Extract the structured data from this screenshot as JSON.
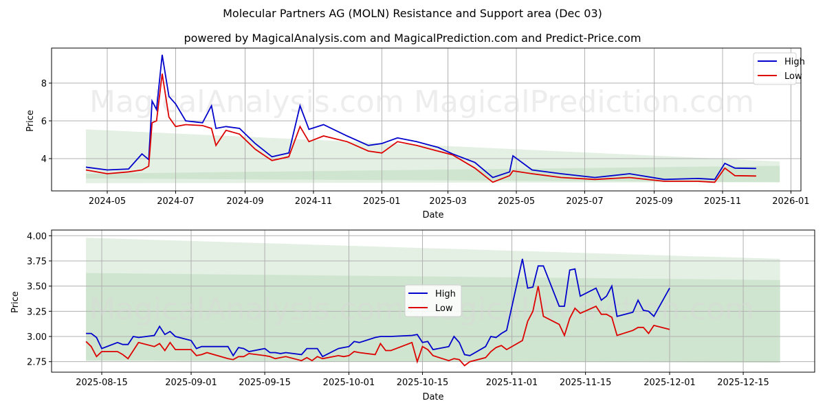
{
  "header": {
    "title": "Molecular Partners AG (MOLN) Resistance and Support area (Dec 03)",
    "subtitle": "powered by MagicalAnalysis.com and MagicalPrediction.com and Predict-Price.com"
  },
  "watermarks": [
    "MagicalAnalysis.com",
    "MagicalPrediction.com"
  ],
  "colors": {
    "high": "#0000cc",
    "low": "#dd0000",
    "band_light": "#e3efe3",
    "band_dark": "#cce3cc",
    "grid": "#b0b0b0"
  },
  "chart_data": [
    {
      "type": "line",
      "title": "",
      "xlabel": "Date",
      "ylabel": "Price",
      "ylim": [
        2.3,
        9.9
      ],
      "grid": true,
      "legend_position": "upper right",
      "x_ticks": [
        "2024-05",
        "2024-07",
        "2024-09",
        "2024-11",
        "2025-01",
        "2025-03",
        "2025-05",
        "2025-07",
        "2025-09",
        "2025-11",
        "2026-01"
      ],
      "y_ticks": [
        "4",
        "6",
        "8"
      ],
      "legend": [
        "High",
        "Low"
      ],
      "x": [
        "2024-04-12",
        "2024-05-01",
        "2024-05-20",
        "2024-06-01",
        "2024-06-07",
        "2024-06-10",
        "2024-06-14",
        "2024-06-19",
        "2024-06-25",
        "2024-07-01",
        "2024-07-10",
        "2024-07-25",
        "2024-08-02",
        "2024-08-06",
        "2024-08-15",
        "2024-08-27",
        "2024-09-10",
        "2024-09-25",
        "2024-10-10",
        "2024-10-20",
        "2024-10-28",
        "2024-11-10",
        "2024-12-01",
        "2024-12-20",
        "2025-01-01",
        "2025-01-15",
        "2025-02-01",
        "2025-02-20",
        "2025-03-05",
        "2025-03-25",
        "2025-04-10",
        "2025-04-25",
        "2025-04-28",
        "2025-05-15",
        "2025-06-10",
        "2025-07-10",
        "2025-08-10",
        "2025-09-10",
        "2025-10-10",
        "2025-10-25",
        "2025-11-03",
        "2025-11-12",
        "2025-12-01"
      ],
      "series": [
        {
          "name": "High",
          "values": [
            3.55,
            3.4,
            3.45,
            4.25,
            3.95,
            7.05,
            6.6,
            9.5,
            7.3,
            6.9,
            6.0,
            5.9,
            6.8,
            5.6,
            5.7,
            5.6,
            4.8,
            4.1,
            4.3,
            6.8,
            5.55,
            5.8,
            5.2,
            4.7,
            4.8,
            5.1,
            4.9,
            4.6,
            4.25,
            3.8,
            3.0,
            3.3,
            4.15,
            3.4,
            3.2,
            3.0,
            3.2,
            2.9,
            2.95,
            2.9,
            3.75,
            3.5,
            3.48
          ]
        },
        {
          "name": "Low",
          "values": [
            3.4,
            3.2,
            3.3,
            3.4,
            3.6,
            5.9,
            6.0,
            8.5,
            6.2,
            5.7,
            5.8,
            5.75,
            5.6,
            4.7,
            5.5,
            5.3,
            4.5,
            3.9,
            4.1,
            5.7,
            4.9,
            5.2,
            4.9,
            4.4,
            4.3,
            4.9,
            4.7,
            4.4,
            4.2,
            3.5,
            2.75,
            3.1,
            3.35,
            3.2,
            3.0,
            2.9,
            3.0,
            2.8,
            2.8,
            2.75,
            3.5,
            3.1,
            3.08
          ]
        }
      ],
      "bands": [
        {
          "name": "resistance_outer",
          "x_range": [
            "2024-04-12",
            "2025-12-22"
          ],
          "top": [
            5.55,
            3.85
          ],
          "bottom": [
            2.7,
            2.75
          ]
        },
        {
          "name": "support_inner",
          "x_range": [
            "2024-04-12",
            "2025-12-22"
          ],
          "top": [
            3.2,
            3.62
          ],
          "bottom": [
            2.95,
            2.75
          ]
        }
      ]
    },
    {
      "type": "line",
      "title": "",
      "xlabel": "Date",
      "ylabel": "Price",
      "ylim": [
        2.65,
        4.05
      ],
      "grid": true,
      "legend_position": "center",
      "x_ticks": [
        "2025-08-15",
        "2025-09-01",
        "2025-09-15",
        "2025-10-01",
        "2025-10-15",
        "2025-11-01",
        "2025-11-15",
        "2025-12-01",
        "2025-12-15"
      ],
      "y_ticks": [
        "2.75",
        "3.00",
        "3.25",
        "3.50",
        "3.75",
        "4.00"
      ],
      "legend": [
        "High",
        "Low"
      ],
      "x": [
        "2025-08-12",
        "2025-08-13",
        "2025-08-14",
        "2025-08-15",
        "2025-08-18",
        "2025-08-19",
        "2025-08-20",
        "2025-08-21",
        "2025-08-22",
        "2025-08-25",
        "2025-08-26",
        "2025-08-27",
        "2025-08-28",
        "2025-08-29",
        "2025-09-01",
        "2025-09-02",
        "2025-09-03",
        "2025-09-04",
        "2025-09-08",
        "2025-09-09",
        "2025-09-10",
        "2025-09-11",
        "2025-09-12",
        "2025-09-15",
        "2025-09-16",
        "2025-09-17",
        "2025-09-18",
        "2025-09-19",
        "2025-09-22",
        "2025-09-23",
        "2025-09-24",
        "2025-09-25",
        "2025-09-26",
        "2025-09-29",
        "2025-09-30",
        "2025-10-01",
        "2025-10-02",
        "2025-10-03",
        "2025-10-06",
        "2025-10-07",
        "2025-10-08",
        "2025-10-09",
        "2025-10-13",
        "2025-10-14",
        "2025-10-15",
        "2025-10-16",
        "2025-10-17",
        "2025-10-20",
        "2025-10-21",
        "2025-10-22",
        "2025-10-23",
        "2025-10-24",
        "2025-10-27",
        "2025-10-28",
        "2025-10-29",
        "2025-10-30",
        "2025-10-31",
        "2025-11-03",
        "2025-11-04",
        "2025-11-05",
        "2025-11-06",
        "2025-11-07",
        "2025-11-10",
        "2025-11-11",
        "2025-11-12",
        "2025-11-13",
        "2025-11-14",
        "2025-11-17",
        "2025-11-18",
        "2025-11-19",
        "2025-11-20",
        "2025-11-21",
        "2025-11-24",
        "2025-11-25",
        "2025-11-26",
        "2025-11-27",
        "2025-11-28",
        "2025-12-01"
      ],
      "series": [
        {
          "name": "High",
          "values": [
            3.03,
            3.03,
            2.99,
            2.88,
            2.94,
            2.92,
            2.92,
            3.0,
            2.99,
            3.01,
            3.1,
            3.02,
            3.05,
            3.0,
            2.96,
            2.88,
            2.9,
            2.9,
            2.9,
            2.81,
            2.89,
            2.88,
            2.85,
            2.88,
            2.84,
            2.84,
            2.83,
            2.84,
            2.82,
            2.88,
            2.88,
            2.88,
            2.8,
            2.88,
            2.89,
            2.9,
            2.95,
            2.94,
            2.99,
            3.0,
            3.0,
            3.0,
            3.01,
            3.02,
            2.94,
            2.95,
            2.87,
            2.9,
            3.0,
            2.94,
            2.82,
            2.81,
            2.9,
            3.0,
            2.99,
            3.03,
            3.06,
            3.77,
            3.48,
            3.49,
            3.7,
            3.7,
            3.3,
            3.3,
            3.66,
            3.67,
            3.4,
            3.48,
            3.36,
            3.4,
            3.5,
            3.2,
            3.24,
            3.36,
            3.26,
            3.25,
            3.2,
            3.48
          ]
        },
        {
          "name": "Low",
          "values": [
            2.95,
            2.9,
            2.8,
            2.85,
            2.85,
            2.82,
            2.78,
            2.86,
            2.94,
            2.9,
            2.93,
            2.86,
            2.94,
            2.87,
            2.87,
            2.81,
            2.82,
            2.84,
            2.78,
            2.77,
            2.8,
            2.8,
            2.83,
            2.81,
            2.8,
            2.78,
            2.79,
            2.8,
            2.76,
            2.79,
            2.76,
            2.8,
            2.78,
            2.81,
            2.8,
            2.81,
            2.85,
            2.84,
            2.82,
            2.93,
            2.86,
            2.86,
            2.94,
            2.75,
            2.9,
            2.87,
            2.81,
            2.76,
            2.78,
            2.77,
            2.71,
            2.75,
            2.79,
            2.85,
            2.89,
            2.91,
            2.87,
            2.96,
            3.15,
            3.25,
            3.5,
            3.2,
            3.12,
            3.01,
            3.18,
            3.28,
            3.23,
            3.3,
            3.22,
            3.22,
            3.19,
            3.01,
            3.06,
            3.09,
            3.09,
            3.03,
            3.11,
            3.07
          ]
        }
      ],
      "bands": [
        {
          "name": "resistance_outer",
          "x_range": [
            "2025-08-12",
            "2025-12-22"
          ],
          "top": [
            3.98,
            3.77
          ],
          "bottom": [
            2.76,
            2.74
          ]
        },
        {
          "name": "support_inner",
          "x_range": [
            "2025-08-12",
            "2025-12-22"
          ],
          "top": [
            3.63,
            3.56
          ],
          "bottom": [
            2.76,
            2.74
          ]
        }
      ]
    }
  ]
}
